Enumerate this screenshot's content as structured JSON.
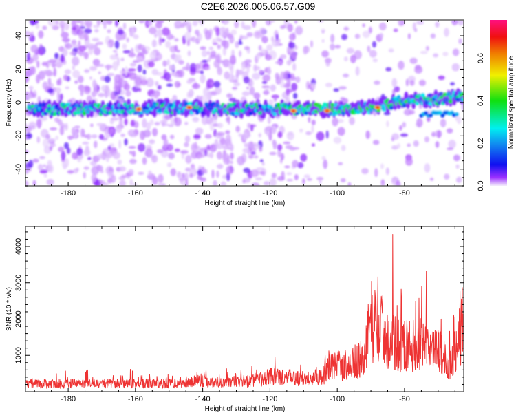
{
  "title": "C2E6.2026.005.06.57.G09",
  "chart_data": [
    {
      "type": "heatmap",
      "name": "spectrogram",
      "xlabel": "Height of straight line (km)",
      "ylabel": "Frequency (Hz)",
      "xlim": [
        -192.7,
        -62.4
      ],
      "ylim": [
        -50,
        49.5
      ],
      "xticks": [
        -180,
        -160,
        -140,
        -120,
        -100,
        -80
      ],
      "yticks": [
        -40,
        -20,
        0,
        20,
        40
      ],
      "ridge_frequency": {
        "x": [
          -190,
          -170,
          -150,
          -130,
          -115,
          -100,
          -90,
          -80,
          -70,
          -64
        ],
        "y": [
          -4,
          -4,
          -3,
          -4,
          -4,
          -4,
          -3,
          1,
          2,
          4
        ]
      },
      "secondary_band": {
        "x_range": [
          -75,
          -64
        ],
        "y": -7
      },
      "peak_amplitude_locations": [
        {
          "x": -159,
          "y": -4
        },
        {
          "x": -144,
          "y": -3
        },
        {
          "x": -113,
          "y": -5
        },
        {
          "x": -103,
          "y": -5
        },
        {
          "x": -88,
          "y": -3
        }
      ],
      "colorbar": {
        "label": "Normalized spectral amplitude",
        "range": [
          0.0,
          0.78
        ],
        "ticks": [
          "0.0",
          "0.2",
          "0.4",
          "0.6"
        ],
        "stops": [
          {
            "v": 0.0,
            "color": "#f4eefc"
          },
          {
            "v": 0.04,
            "color": "#9b30ff"
          },
          {
            "v": 0.1,
            "color": "#1010f0"
          },
          {
            "v": 0.2,
            "color": "#1090f0"
          },
          {
            "v": 0.27,
            "color": "#00f0f0"
          },
          {
            "v": 0.4,
            "color": "#10e010"
          },
          {
            "v": 0.52,
            "color": "#f0f000"
          },
          {
            "v": 0.62,
            "color": "#f08000"
          },
          {
            "v": 0.7,
            "color": "#f01010"
          },
          {
            "v": 0.78,
            "color": "#ff1080"
          }
        ]
      }
    },
    {
      "type": "line",
      "name": "snr",
      "xlabel": "Height of straight line (km)",
      "ylabel": "SNR (10 * v/v)",
      "xlim": [
        -192.7,
        -62.4
      ],
      "ylim": [
        0,
        4550
      ],
      "xticks": [
        -180,
        -160,
        -140,
        -120,
        -100,
        -80
      ],
      "yticks": [
        1000,
        2000,
        3000,
        4000
      ],
      "color": "#ee3333",
      "envelope": {
        "x": [
          -192,
          -180,
          -160,
          -145,
          -141,
          -138,
          -130,
          -122,
          -120,
          -110,
          -103,
          -101,
          -98,
          -92,
          -90,
          -88,
          -85,
          -84,
          -80,
          -75,
          -70,
          -66,
          -63
        ],
        "mean": [
          250,
          260,
          260,
          270,
          380,
          300,
          320,
          380,
          500,
          420,
          600,
          900,
          800,
          1100,
          2300,
          2200,
          1800,
          1600,
          1500,
          1500,
          1300,
          900,
          2200
        ],
        "max": [
          700,
          600,
          650,
          600,
          850,
          600,
          700,
          800,
          1150,
          900,
          1100,
          1950,
          1400,
          1900,
          3300,
          3950,
          3500,
          4550,
          3700,
          3500,
          3300,
          2800,
          3900
        ]
      }
    }
  ]
}
